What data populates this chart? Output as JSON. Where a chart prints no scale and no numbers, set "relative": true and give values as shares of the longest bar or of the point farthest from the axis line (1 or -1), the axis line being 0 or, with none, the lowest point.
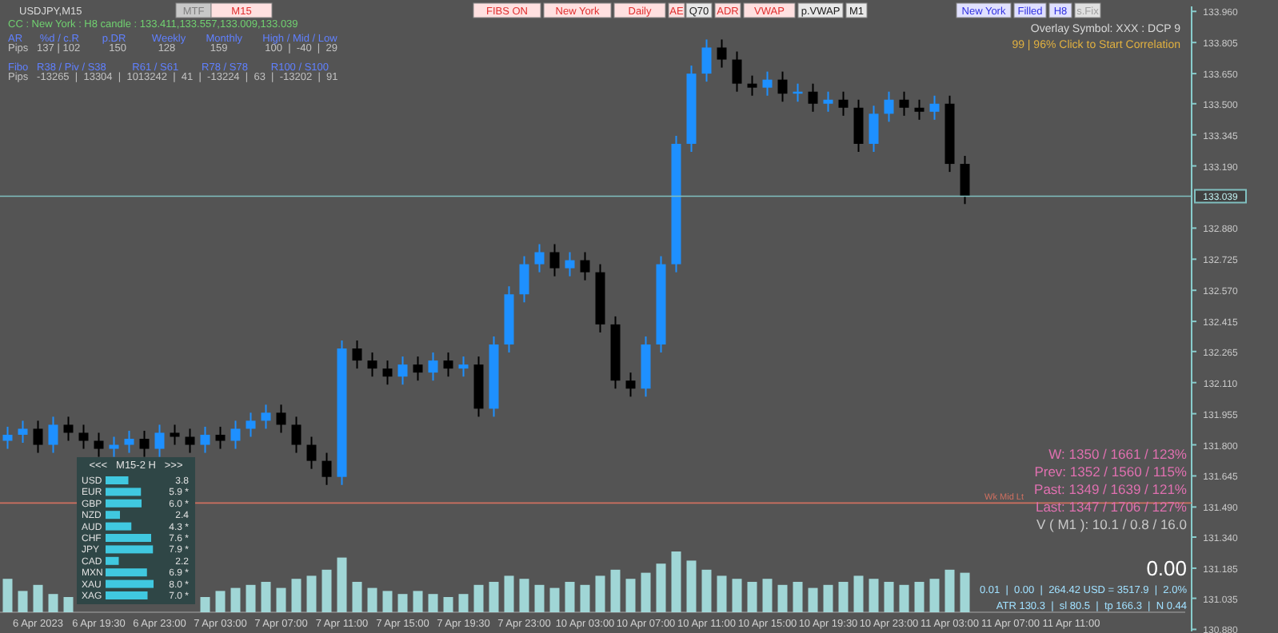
{
  "chart_data": [
    {
      "type": "candlestick",
      "title": "USDJPY,M15",
      "subtitle": "CC : New York : H8 candle : 133.411,133.557,133.009,133.039",
      "categories": [
        null,
        null,
        "6 Apr 2023",
        null,
        null,
        null,
        "6 Apr 19:30",
        null,
        null,
        null,
        "6 Apr 23:00",
        null,
        null,
        null,
        "7 Apr 03:00",
        null,
        null,
        null,
        "7 Apr 07:00",
        null,
        null,
        null,
        "7 Apr 11:00",
        null,
        null,
        null,
        "7 Apr 15:00",
        null,
        null,
        null,
        "7 Apr 19:30",
        null,
        null,
        null,
        "7 Apr 23:00",
        null,
        null,
        null,
        "10 Apr 03:00",
        null,
        null,
        null,
        "10 Apr 07:00",
        null,
        null,
        null,
        "10 Apr 11:00",
        null,
        null,
        null,
        "10 Apr 15:00",
        null,
        null,
        null,
        "10 Apr 19:30",
        null,
        null,
        null,
        "10 Apr 23:00",
        null,
        null,
        null,
        "11 Apr 03:00",
        null,
        null,
        null,
        "11 Apr 07:00",
        null,
        null,
        null,
        "11 Apr 11:00",
        null,
        null,
        null,
        null,
        null,
        null,
        null
      ],
      "ohlc": [
        [
          131.82,
          131.89,
          131.78,
          131.85
        ],
        [
          131.85,
          131.92,
          131.81,
          131.88
        ],
        [
          131.88,
          131.92,
          131.76,
          131.8
        ],
        [
          131.8,
          131.94,
          131.76,
          131.9
        ],
        [
          131.9,
          131.94,
          131.82,
          131.86
        ],
        [
          131.86,
          131.9,
          131.78,
          131.82
        ],
        [
          131.82,
          131.86,
          131.74,
          131.78
        ],
        [
          131.78,
          131.84,
          131.74,
          131.8
        ],
        [
          131.8,
          131.87,
          131.76,
          131.83
        ],
        [
          131.83,
          131.87,
          131.74,
          131.78
        ],
        [
          131.78,
          131.9,
          131.74,
          131.86
        ],
        [
          131.86,
          131.9,
          131.8,
          131.84
        ],
        [
          131.84,
          131.88,
          131.76,
          131.8
        ],
        [
          131.8,
          131.89,
          131.76,
          131.85
        ],
        [
          131.85,
          131.89,
          131.78,
          131.82
        ],
        [
          131.82,
          131.92,
          131.78,
          131.88
        ],
        [
          131.88,
          131.96,
          131.84,
          131.92
        ],
        [
          131.92,
          132.0,
          131.88,
          131.96
        ],
        [
          131.96,
          132.0,
          131.86,
          131.9
        ],
        [
          131.9,
          131.94,
          131.76,
          131.8
        ],
        [
          131.8,
          131.84,
          131.68,
          131.72
        ],
        [
          131.72,
          131.76,
          131.6,
          131.64
        ],
        [
          131.64,
          132.32,
          131.6,
          132.28
        ],
        [
          132.28,
          132.32,
          132.18,
          132.22
        ],
        [
          132.22,
          132.26,
          132.14,
          132.18
        ],
        [
          132.18,
          132.22,
          132.1,
          132.14
        ],
        [
          132.14,
          132.24,
          132.1,
          132.2
        ],
        [
          132.2,
          132.24,
          132.12,
          132.16
        ],
        [
          132.16,
          132.26,
          132.12,
          132.22
        ],
        [
          132.22,
          132.26,
          132.14,
          132.18
        ],
        [
          132.18,
          132.24,
          132.14,
          132.2
        ],
        [
          132.2,
          132.24,
          131.94,
          131.98
        ],
        [
          131.98,
          132.34,
          131.94,
          132.3
        ],
        [
          132.3,
          132.59,
          132.26,
          132.55
        ],
        [
          132.55,
          132.74,
          132.51,
          132.7
        ],
        [
          132.7,
          132.8,
          132.66,
          132.76
        ],
        [
          132.76,
          132.8,
          132.64,
          132.68
        ],
        [
          132.68,
          132.76,
          132.64,
          132.72
        ],
        [
          132.72,
          132.76,
          132.62,
          132.66
        ],
        [
          132.66,
          132.7,
          132.36,
          132.4
        ],
        [
          132.4,
          132.44,
          132.08,
          132.12
        ],
        [
          132.12,
          132.16,
          132.04,
          132.08
        ],
        [
          132.08,
          132.34,
          132.04,
          132.3
        ],
        [
          132.3,
          132.74,
          132.26,
          132.7
        ],
        [
          132.7,
          133.34,
          132.66,
          133.3
        ],
        [
          133.3,
          133.69,
          133.26,
          133.65
        ],
        [
          133.65,
          133.82,
          133.61,
          133.78
        ],
        [
          133.78,
          133.82,
          133.68,
          133.72
        ],
        [
          133.72,
          133.76,
          133.56,
          133.6
        ],
        [
          133.6,
          133.64,
          133.54,
          133.58
        ],
        [
          133.58,
          133.66,
          133.54,
          133.62
        ],
        [
          133.62,
          133.66,
          133.51,
          133.55
        ],
        [
          133.55,
          133.6,
          133.51,
          133.56
        ],
        [
          133.56,
          133.6,
          133.46,
          133.5
        ],
        [
          133.5,
          133.56,
          133.46,
          133.52
        ],
        [
          133.52,
          133.56,
          133.44,
          133.48
        ],
        [
          133.48,
          133.52,
          133.26,
          133.3
        ],
        [
          133.3,
          133.49,
          133.26,
          133.45
        ],
        [
          133.45,
          133.56,
          133.41,
          133.52
        ],
        [
          133.52,
          133.56,
          133.44,
          133.48
        ],
        [
          133.48,
          133.52,
          133.42,
          133.46
        ],
        [
          133.46,
          133.54,
          133.42,
          133.5
        ],
        [
          133.5,
          133.54,
          133.16,
          133.2
        ],
        [
          133.2,
          133.24,
          133.0,
          133.04
        ],
        null,
        null,
        null,
        null,
        null,
        null,
        null,
        null,
        null,
        null,
        null,
        null,
        null,
        null
      ],
      "colors": [
        "#1e90ff",
        "#1e90ff",
        "#000000",
        "#1e90ff",
        "#000000",
        "#000000",
        "#000000",
        "#1e90ff",
        "#1e90ff",
        "#000000",
        "#1e90ff",
        "#000000",
        "#000000",
        "#1e90ff",
        "#000000",
        "#1e90ff",
        "#1e90ff",
        "#1e90ff",
        "#000000",
        "#000000",
        "#000000",
        "#000000",
        "#1e90ff",
        "#000000",
        "#000000",
        "#000000",
        "#1e90ff",
        "#000000",
        "#1e90ff",
        "#000000",
        "#1e90ff",
        "#000000",
        "#1e90ff",
        "#1e90ff",
        "#1e90ff",
        "#1e90ff",
        "#000000",
        "#1e90ff",
        "#000000",
        "#000000",
        "#000000",
        "#000000",
        "#1e90ff",
        "#1e90ff",
        "#1e90ff",
        "#1e90ff",
        "#1e90ff",
        "#000000",
        "#000000",
        "#000000",
        "#1e90ff",
        "#000000",
        "#1e90ff",
        "#000000",
        "#1e90ff",
        "#000000",
        "#000000",
        "#1e90ff",
        "#1e90ff",
        "#000000",
        "#000000",
        "#1e90ff",
        "#000000",
        "#000000",
        null,
        null,
        null,
        null,
        null,
        null,
        null,
        null,
        null,
        null,
        null,
        null,
        null,
        null
      ],
      "ylim": [
        130.87,
        133.985
      ],
      "yticks": [
        {
          "value": 133.96,
          "label": "133.960"
        },
        {
          "value": 133.805,
          "label": "133.805"
        },
        {
          "value": 133.65,
          "label": "133.650"
        },
        {
          "value": 133.5,
          "label": "133.500"
        },
        133.345,
        {
          "value": 133.19,
          "label": "133.190"
        },
        {
          "value": 132.88,
          "label": "132.880"
        },
        132.725,
        {
          "value": 132.57,
          "label": "132.570"
        },
        132.415,
        132.265,
        {
          "value": 132.11,
          "label": "132.110"
        },
        131.955,
        {
          "value": 131.8,
          "label": "131.800"
        },
        131.645,
        {
          "value": 131.49,
          "label": "131.490"
        },
        {
          "value": 131.34,
          "label": "131.340"
        },
        131.185,
        131.035,
        {
          "value": 130.88,
          "label": "130.880"
        }
      ],
      "ref_lines": [
        {
          "axis": "y",
          "value": 133.039,
          "label": "133.039",
          "color": "#80c0c0"
        },
        {
          "axis": "y",
          "value": 131.51,
          "label": "Wk Mid Lt",
          "color": "#d07060"
        }
      ],
      "annotations": [
        "MTF",
        "M15",
        "FIBS ON",
        "New York",
        "Daily",
        "AE",
        "Q70",
        "ADR",
        "VWAP",
        "p.VWAP",
        "M1",
        "New York",
        "Filled",
        "H8",
        "s.Fix",
        "AR      %d / c.R        p.DR         Weekly       Monthly       High / Mid / Low",
        "Pips   137 | 102          150           128            159             100  |  -40  |  29",
        "Fibo   R38 / Piv / S38         R61 / S61        R78 / S78        R100 / S100",
        "Pips   -13265  |  13304  |  1013242  |  41  |  -13224  |  63  |  -13202  |  91",
        "Overlay Symbol: XXX : DCP 9",
        "99 | 96% Click to Start Correlation",
        "W: 1350 / 1661 / 123%",
        "Prev: 1352 / 1560 / 115%",
        "Past: 1349 / 1639 / 121%",
        "Last: 1347 / 1706 / 127%",
        "V ( M1 ): 10.1 / 0.8 / 16.0",
        "0.00",
        "0.01  |  0.00  |  264.42 USD = 3517.9  |  2.0%",
        "ATR 130.3  |  sl 80.5  |  tp 166.3  |  N 0.44"
      ]
    },
    {
      "type": "bar",
      "relative": true,
      "color": "#a8e4e4",
      "categories": [
        null,
        null,
        null,
        null,
        null,
        null,
        null,
        null,
        null,
        null,
        null,
        null,
        null,
        null,
        null,
        null,
        null,
        null,
        null,
        null,
        null,
        null,
        null,
        null,
        null,
        null,
        null,
        null,
        null,
        null,
        null,
        null,
        null,
        null,
        null,
        null,
        null,
        null,
        null,
        null,
        null,
        null,
        null,
        null,
        null,
        null,
        null,
        null,
        null,
        null,
        null,
        null,
        null,
        null,
        null,
        null,
        null,
        null,
        null,
        null,
        null,
        null,
        null,
        null,
        null,
        null,
        null,
        null,
        null,
        null,
        null,
        null,
        null,
        null,
        null,
        null,
        null,
        null
      ],
      "values": [
        0.55,
        0.35,
        0.45,
        0.3,
        0.25,
        null,
        null,
        null,
        null,
        null,
        null,
        null,
        null,
        0.25,
        0.35,
        0.4,
        0.45,
        0.5,
        0.4,
        0.55,
        0.6,
        0.7,
        0.9,
        0.5,
        0.4,
        0.35,
        0.3,
        0.35,
        0.3,
        0.25,
        0.3,
        0.45,
        0.5,
        0.6,
        0.55,
        0.45,
        0.4,
        0.5,
        0.45,
        0.6,
        0.7,
        0.55,
        0.65,
        0.8,
        1,
        0.85,
        0.7,
        0.6,
        0.55,
        0.5,
        0.55,
        0.45,
        0.5,
        0.4,
        0.45,
        0.5,
        0.6,
        0.55,
        0.5,
        0.45,
        0.5,
        0.55,
        0.7,
        0.65,
        null,
        null,
        null,
        null,
        null,
        null,
        null,
        null,
        null,
        null,
        null,
        null,
        null,
        null
      ]
    },
    {
      "type": "bar",
      "orientation": "horizontal",
      "title": "<<<   M15-2 H   >>>",
      "color": "#40c8e0",
      "categories": [
        "USD",
        "EUR",
        "GBP",
        "NZD",
        "AUD",
        "CHF",
        "JPY",
        "CAD",
        "MXN",
        "XAU",
        "XAG"
      ],
      "values": [
        3.8,
        5.9,
        6.0,
        2.4,
        4.3,
        7.6,
        7.9,
        2.2,
        6.9,
        8.0,
        7.0
      ],
      "value_labels": [
        "3.8",
        "5.9 *",
        "6.0 *",
        "2.4",
        "4.3 *",
        "7.6 *",
        "7.9 *",
        "2.2",
        "6.9 *",
        "8.0 *",
        "7.0 *"
      ]
    }
  ]
}
